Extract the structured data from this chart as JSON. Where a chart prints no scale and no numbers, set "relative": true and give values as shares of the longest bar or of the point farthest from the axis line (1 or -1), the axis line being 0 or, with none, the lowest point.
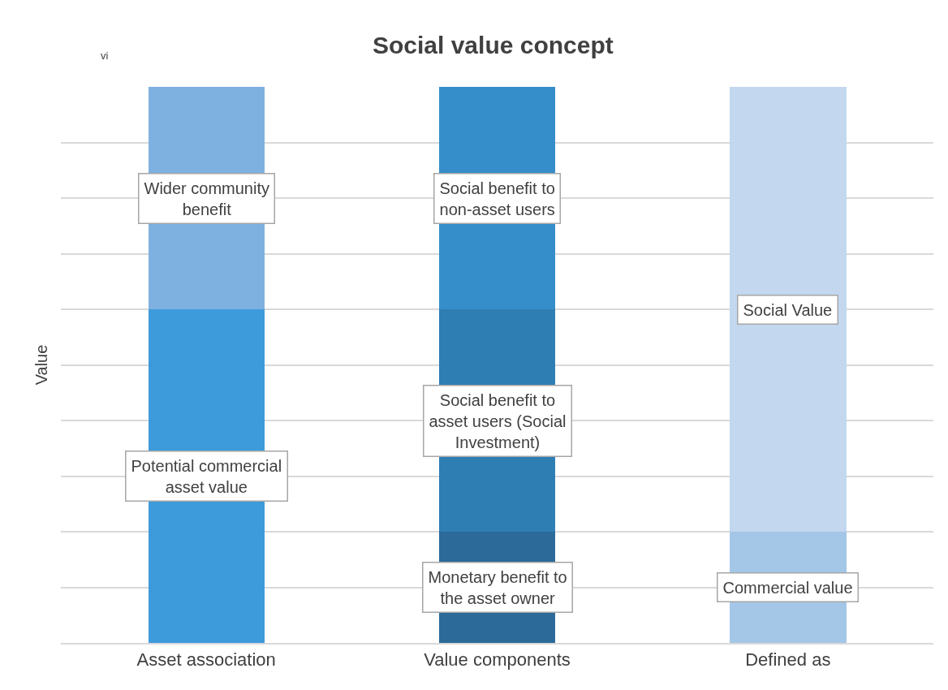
{
  "chart_data": {
    "type": "bar",
    "title": "Social value concept",
    "ylabel": "Value",
    "relative": true,
    "stacked": true,
    "grid": "y",
    "categories": [
      "Asset association",
      "Value components",
      "Defined as"
    ],
    "series": [
      {
        "name": "Potential commercial\nasset value",
        "color": "#3d9bdc",
        "values": [
          0.6,
          null,
          null
        ]
      },
      {
        "name": "Wider community\nbenefit",
        "color": "#7eb1e0",
        "values": [
          0.4,
          null,
          null
        ]
      },
      {
        "name": "Monetary benefit to\nthe asset owner",
        "color": "#2b6a99",
        "values": [
          null,
          0.2,
          null
        ]
      },
      {
        "name": "Social benefit to\nasset users (Social\nInvestment)",
        "color": "#2e7eb3",
        "values": [
          null,
          0.4,
          null
        ]
      },
      {
        "name": "Social benefit to\nnon-asset users",
        "color": "#358ec9",
        "values": [
          null,
          0.4,
          null
        ]
      },
      {
        "name": "Commercial value",
        "color": "#a4c6e7",
        "values": [
          null,
          null,
          0.2
        ]
      },
      {
        "name": "Social Value",
        "color": "#c3d7ef",
        "values": [
          null,
          null,
          0.8
        ]
      }
    ],
    "annotations": [
      "vi"
    ]
  }
}
